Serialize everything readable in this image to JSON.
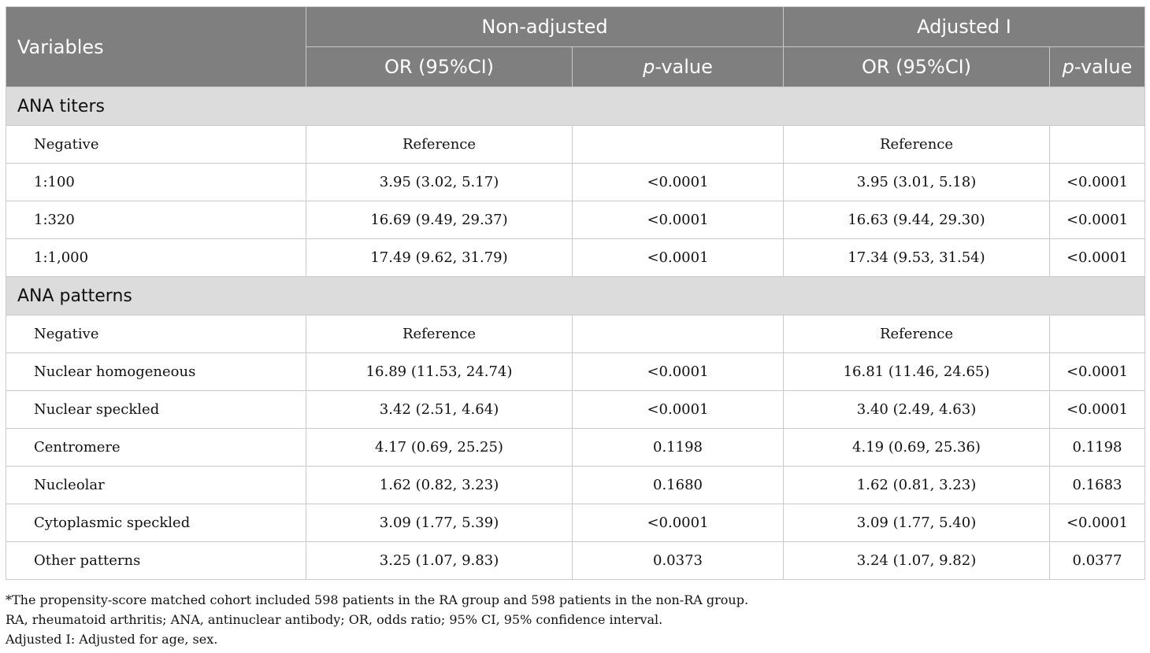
{
  "header": {
    "variables": "Variables",
    "group_non_adjusted": "Non-adjusted",
    "group_adjusted": "Adjusted I",
    "or_label": "OR (95%CI)",
    "p_italic": "p",
    "p_suffix": "-value"
  },
  "sections": [
    {
      "title": "ANA titers",
      "rows": [
        {
          "label": "Negative",
          "or1": "Reference",
          "p1": "",
          "or2": "Reference",
          "p2": ""
        },
        {
          "label": "1:100",
          "or1": "3.95 (3.02, 5.17)",
          "p1": "<0.0001",
          "or2": "3.95 (3.01, 5.18)",
          "p2": "<0.0001"
        },
        {
          "label": "1:320",
          "or1": "16.69 (9.49, 29.37)",
          "p1": "<0.0001",
          "or2": "16.63 (9.44, 29.30)",
          "p2": "<0.0001"
        },
        {
          "label": "1:1,000",
          "or1": "17.49 (9.62, 31.79)",
          "p1": "<0.0001",
          "or2": "17.34 (9.53, 31.54)",
          "p2": "<0.0001"
        }
      ]
    },
    {
      "title": "ANA patterns",
      "rows": [
        {
          "label": "Negative",
          "or1": "Reference",
          "p1": "",
          "or2": "Reference",
          "p2": ""
        },
        {
          "label": "Nuclear homogeneous",
          "or1": "16.89 (11.53, 24.74)",
          "p1": "<0.0001",
          "or2": "16.81 (11.46, 24.65)",
          "p2": "<0.0001"
        },
        {
          "label": "Nuclear speckled",
          "or1": "3.42 (2.51, 4.64)",
          "p1": "<0.0001",
          "or2": "3.40 (2.49, 4.63)",
          "p2": "<0.0001"
        },
        {
          "label": "Centromere",
          "or1": "4.17 (0.69, 25.25)",
          "p1": "0.1198",
          "or2": "4.19 (0.69, 25.36)",
          "p2": "0.1198"
        },
        {
          "label": "Nucleolar",
          "or1": "1.62 (0.82, 3.23)",
          "p1": "0.1680",
          "or2": "1.62 (0.81, 3.23)",
          "p2": "0.1683"
        },
        {
          "label": "Cytoplasmic speckled",
          "or1": "3.09 (1.77, 5.39)",
          "p1": "<0.0001",
          "or2": "3.09 (1.77, 5.40)",
          "p2": "<0.0001"
        },
        {
          "label": "Other patterns",
          "or1": "3.25 (1.07, 9.83)",
          "p1": "0.0373",
          "or2": "3.24 (1.07, 9.82)",
          "p2": "0.0377"
        }
      ]
    }
  ],
  "footnotes": [
    "*The propensity-score matched cohort included 598 patients in the RA group and 598 patients in the non-RA group.",
    "RA, rheumatoid arthritis; ANA, antinuclear antibody; OR, odds ratio; 95% CI, 95% confidence interval.",
    "Adjusted I: Adjusted for age, sex."
  ]
}
